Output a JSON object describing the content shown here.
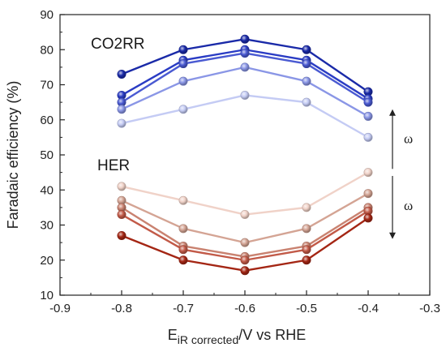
{
  "chart_data": {
    "type": "line",
    "title": "",
    "xlabel": "E iR corrected/V vs RHE",
    "xlabel_parts": {
      "main": "E",
      "sub": "iR corrected",
      "rest": "/V vs RHE"
    },
    "ylabel": "Faradaic efficiency (%)",
    "xlim": [
      -0.9,
      -0.3
    ],
    "ylim": [
      10,
      90
    ],
    "xticks": [
      "-0.9",
      "-0.8",
      "-0.7",
      "-0.6",
      "-0.5",
      "-0.4",
      "-0.3"
    ],
    "yticks": [
      "10",
      "20",
      "30",
      "40",
      "50",
      "60",
      "70",
      "80",
      "90"
    ],
    "x": [
      -0.8,
      -0.7,
      -0.6,
      -0.5,
      -0.4
    ],
    "grid": false,
    "legend": "none",
    "groups": [
      {
        "label": "CO2RR",
        "series": [
          {
            "color": "#1a2aa8",
            "values": [
              73,
              80,
              83,
              80,
              68
            ]
          },
          {
            "color": "#2a3cc4",
            "values": [
              67,
              77,
              80,
              77,
              66
            ]
          },
          {
            "color": "#4a5ad2",
            "values": [
              65,
              76,
              79,
              76,
              65
            ]
          },
          {
            "color": "#8a96e6",
            "values": [
              63,
              71,
              75,
              71,
              61
            ]
          },
          {
            "color": "#c4cbf4",
            "values": [
              59,
              63,
              67,
              65,
              55
            ]
          }
        ]
      },
      {
        "label": "HER",
        "series": [
          {
            "color": "#f0d2c8",
            "values": [
              41,
              37,
              33,
              35,
              45
            ]
          },
          {
            "color": "#d4a494",
            "values": [
              37,
              29,
              25,
              29,
              39
            ]
          },
          {
            "color": "#c98270",
            "values": [
              35,
              24,
              21,
              24,
              35
            ]
          },
          {
            "color": "#c25a48",
            "values": [
              33,
              23,
              20,
              23,
              34
            ]
          },
          {
            "color": "#a42614",
            "values": [
              27,
              20,
              17,
              20,
              32
            ]
          }
        ]
      }
    ],
    "annotations": [
      {
        "symbol": "ω",
        "direction": "up",
        "group": "CO2RR"
      },
      {
        "symbol": "ω",
        "direction": "down",
        "group": "HER"
      }
    ]
  }
}
